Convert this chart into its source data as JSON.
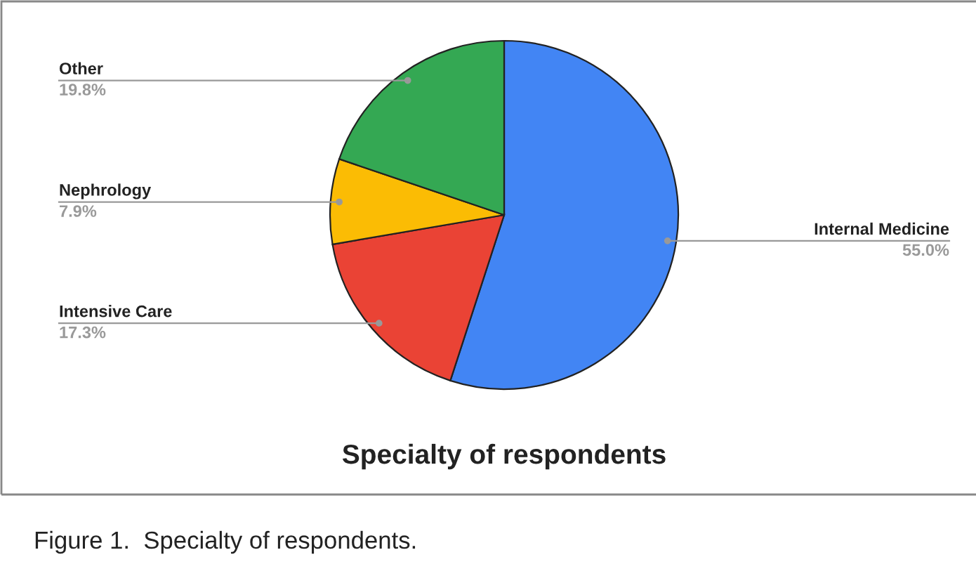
{
  "chart_data": {
    "type": "pie",
    "title": "Specialty of respondents",
    "categories": [
      "Internal Medicine",
      "Intensive Care",
      "Nephrology",
      "Other"
    ],
    "values": [
      55.0,
      17.3,
      7.9,
      19.8
    ],
    "colors": [
      "#4285f4",
      "#ea4335",
      "#fbbc04",
      "#34a853"
    ],
    "value_labels": [
      "55.0%",
      "17.3%",
      "7.9%",
      "19.8%"
    ],
    "annotations": [
      "Figure 1.  Specialty of respondents."
    ]
  }
}
